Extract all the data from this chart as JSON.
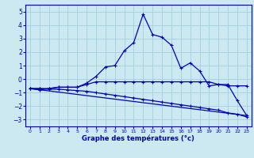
{
  "x": [
    0,
    1,
    2,
    3,
    4,
    5,
    6,
    7,
    8,
    9,
    10,
    11,
    12,
    13,
    14,
    15,
    16,
    17,
    18,
    19,
    20,
    21,
    22,
    23
  ],
  "line_temp": [
    -0.7,
    -0.8,
    -0.7,
    -0.6,
    -0.6,
    -0.6,
    -0.3,
    0.2,
    0.9,
    1.0,
    2.1,
    2.7,
    4.8,
    3.3,
    3.1,
    2.5,
    0.8,
    1.2,
    0.6,
    -0.5,
    -0.4,
    -0.4,
    -1.6,
    -2.7
  ],
  "line_flat": [
    -0.7,
    -0.7,
    -0.7,
    -0.6,
    -0.6,
    -0.6,
    -0.4,
    -0.2,
    -0.2,
    -0.2,
    -0.2,
    -0.2,
    -0.2,
    -0.2,
    -0.2,
    -0.2,
    -0.2,
    -0.2,
    -0.2,
    -0.2,
    -0.4,
    -0.5,
    -0.5,
    -0.5
  ],
  "line_diag": [
    -0.7,
    -0.7,
    -0.75,
    -0.75,
    -0.8,
    -0.85,
    -0.9,
    -1.0,
    -1.1,
    -1.2,
    -1.3,
    -1.4,
    -1.5,
    -1.6,
    -1.7,
    -1.8,
    -1.9,
    -2.0,
    -2.1,
    -2.2,
    -2.3,
    -2.5,
    -2.6,
    -2.8
  ],
  "trend_x": [
    0,
    23
  ],
  "trend_y": [
    -0.7,
    -2.7
  ],
  "line_color": "#0000bb",
  "bg_color": "#cce8f0",
  "grid_color": "#99ccdd",
  "xlabel": "Graphe des températures (°c)",
  "ylim": [
    -3.5,
    5.5
  ],
  "xlim": [
    -0.5,
    23.5
  ],
  "yticks": [
    -3,
    -2,
    -1,
    0,
    1,
    2,
    3,
    4,
    5
  ],
  "xticks": [
    0,
    1,
    2,
    3,
    4,
    5,
    6,
    7,
    8,
    9,
    10,
    11,
    12,
    13,
    14,
    15,
    16,
    17,
    18,
    19,
    20,
    21,
    22,
    23
  ]
}
